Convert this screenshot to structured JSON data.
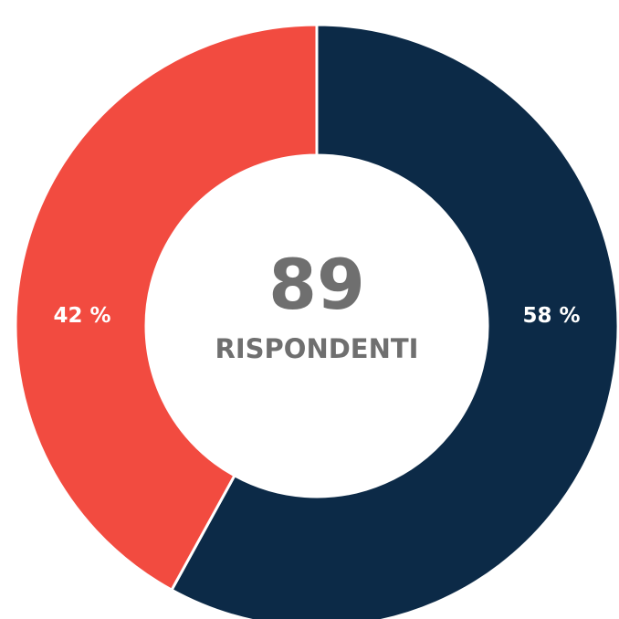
{
  "chart_data": {
    "type": "pie",
    "donut": true,
    "slices": [
      {
        "label": "58 %",
        "value": 58,
        "color": "#0c2a47"
      },
      {
        "label": "42 %",
        "value": 42,
        "color": "#f24b40"
      }
    ],
    "center_value": "89",
    "center_caption": "RISPONDENTI",
    "start_angle": "top",
    "direction": "clockwise"
  }
}
